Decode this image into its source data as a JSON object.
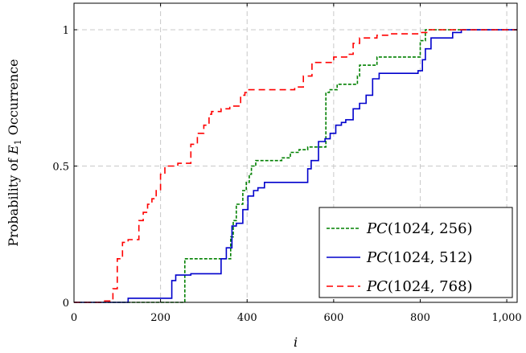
{
  "chart_data": {
    "type": "line",
    "step": true,
    "xlabel": "i",
    "ylabel": "Probability of E1 Occurrence",
    "xlim": [
      0,
      1024
    ],
    "ylim": [
      0,
      1.1
    ],
    "xticks": [
      "0",
      "200",
      "400",
      "600",
      "800",
      "1,000"
    ],
    "xtick_values": [
      0,
      200,
      400,
      600,
      800,
      1000
    ],
    "yticks": [
      "0",
      "0.5",
      "1"
    ],
    "ytick_values": [
      0,
      0.5,
      1
    ],
    "grid": true,
    "legend_position": "bottom-right",
    "series": [
      {
        "name": "PC(1024, 256)",
        "name_parts": [
          "PC",
          "(1024, 256)"
        ],
        "color": "#008000",
        "dash": "dotted",
        "x": [
          0,
          253,
          256,
          345,
          362,
          368,
          375,
          390,
          398,
          405,
          410,
          420,
          470,
          480,
          500,
          520,
          540,
          578,
          582,
          590,
          608,
          650,
          655,
          660,
          700,
          795,
          800,
          812,
          1024
        ],
        "y": [
          0,
          0,
          0.16,
          0.16,
          0.24,
          0.3,
          0.36,
          0.41,
          0.44,
          0.47,
          0.5,
          0.52,
          0.52,
          0.53,
          0.55,
          0.56,
          0.57,
          0.57,
          0.77,
          0.78,
          0.8,
          0.8,
          0.83,
          0.87,
          0.9,
          0.9,
          0.96,
          1.0,
          1.0
        ]
      },
      {
        "name": "PC(1024, 512)",
        "name_parts": [
          "PC",
          "(1024, 512)"
        ],
        "color": "#0000cc",
        "dash": "solid",
        "x": [
          0,
          125,
          222,
          226,
          235,
          270,
          340,
          352,
          365,
          375,
          390,
          402,
          415,
          425,
          440,
          505,
          540,
          548,
          565,
          580,
          592,
          605,
          618,
          628,
          645,
          660,
          675,
          690,
          705,
          765,
          795,
          805,
          812,
          825,
          875,
          895,
          1024
        ],
        "y": [
          0,
          0.015,
          0.015,
          0.08,
          0.1,
          0.105,
          0.16,
          0.2,
          0.28,
          0.29,
          0.34,
          0.39,
          0.41,
          0.42,
          0.44,
          0.44,
          0.49,
          0.52,
          0.59,
          0.6,
          0.62,
          0.65,
          0.66,
          0.67,
          0.71,
          0.73,
          0.76,
          0.82,
          0.84,
          0.84,
          0.85,
          0.89,
          0.93,
          0.97,
          0.99,
          1.0,
          1.0
        ]
      },
      {
        "name": "PC(1024, 768)",
        "name_parts": [
          "PC",
          "(1024, 768)"
        ],
        "color": "#ff0000",
        "dash": "dashed",
        "x": [
          0,
          65,
          90,
          100,
          112,
          125,
          150,
          160,
          170,
          180,
          190,
          200,
          210,
          228,
          240,
          270,
          285,
          300,
          312,
          318,
          340,
          360,
          385,
          395,
          400,
          420,
          480,
          510,
          530,
          550,
          580,
          600,
          630,
          645,
          660,
          700,
          730,
          800,
          818,
          1024
        ],
        "y": [
          0,
          0.005,
          0.05,
          0.16,
          0.22,
          0.23,
          0.3,
          0.33,
          0.36,
          0.38,
          0.41,
          0.47,
          0.5,
          0.5,
          0.51,
          0.58,
          0.62,
          0.65,
          0.69,
          0.7,
          0.71,
          0.72,
          0.76,
          0.77,
          0.78,
          0.78,
          0.78,
          0.79,
          0.83,
          0.88,
          0.88,
          0.9,
          0.91,
          0.95,
          0.97,
          0.98,
          0.985,
          0.99,
          1.0,
          1.0
        ]
      }
    ]
  }
}
